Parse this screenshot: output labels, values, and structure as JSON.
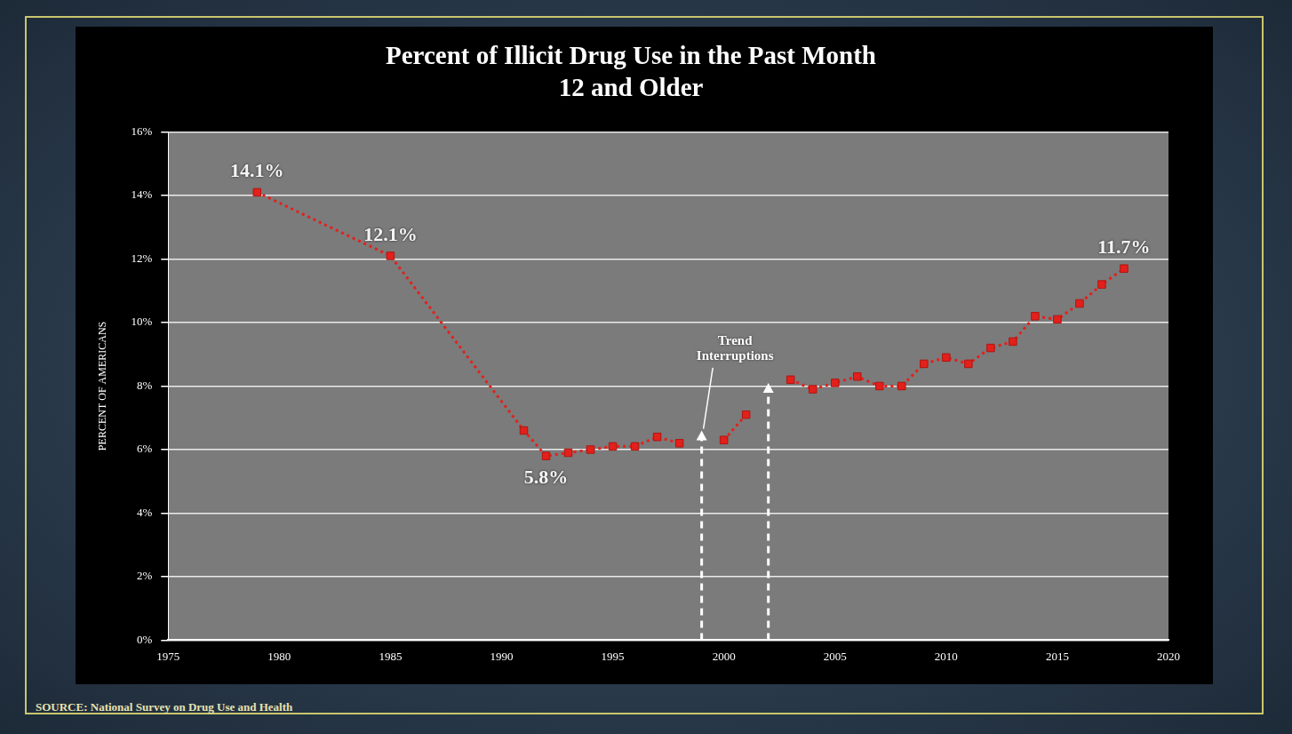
{
  "chart_data": {
    "type": "line",
    "title": [
      "Percent of Illicit Drug Use in the Past Month",
      "12 and Older"
    ],
    "y_label": "PERCENT OF AMERICANS",
    "source": "SOURCE: National Survey on Drug Use and Health",
    "x": [
      1979,
      1985,
      1991,
      1992,
      1993,
      1994,
      1995,
      1996,
      1997,
      1998,
      1999,
      2000,
      2001,
      2002,
      2003,
      2004,
      2005,
      2006,
      2007,
      2008,
      2009,
      2010,
      2011,
      2012,
      2013,
      2014,
      2015,
      2016,
      2017,
      2018
    ],
    "values": [
      14.1,
      12.1,
      6.6,
      5.8,
      5.9,
      6.0,
      6.1,
      6.1,
      6.4,
      6.2,
      null,
      6.3,
      7.1,
      null,
      8.2,
      7.9,
      8.1,
      8.3,
      8.0,
      8.0,
      8.7,
      8.9,
      8.7,
      9.2,
      9.4,
      10.2,
      10.1,
      10.6,
      11.2,
      11.7
    ],
    "value_labels": [
      "14.1%",
      "12.1%",
      null,
      "5.8%",
      null,
      null,
      null,
      null,
      null,
      null,
      null,
      null,
      null,
      null,
      null,
      null,
      null,
      null,
      null,
      null,
      null,
      null,
      null,
      null,
      null,
      null,
      null,
      null,
      null,
      "11.7%"
    ],
    "color": "#e3201b",
    "marker": "square",
    "line_style": "dotted",
    "xlim": [
      1975,
      2020
    ],
    "xticks": [
      1975,
      1980,
      1985,
      1990,
      1995,
      2000,
      2005,
      2010,
      2015,
      2020
    ],
    "ylim": [
      0,
      16
    ],
    "yticks": [
      {
        "value": 0,
        "label": "0%"
      },
      {
        "value": 2,
        "label": "2%"
      },
      {
        "value": 4,
        "label": "4%"
      },
      {
        "value": 6,
        "label": "6%"
      },
      {
        "value": 8,
        "label": "8%"
      },
      {
        "value": 10,
        "label": "10%"
      },
      {
        "value": 12,
        "label": "12%"
      },
      {
        "value": 14,
        "label": "14%"
      },
      {
        "value": 16,
        "label": "16%"
      }
    ],
    "grid": true,
    "annotations": [
      {
        "text": "Trend Interruptions",
        "arrows": [
          {
            "x": 1999,
            "y": 6.6
          },
          {
            "x": 2002,
            "y": 8.1
          }
        ]
      }
    ]
  }
}
